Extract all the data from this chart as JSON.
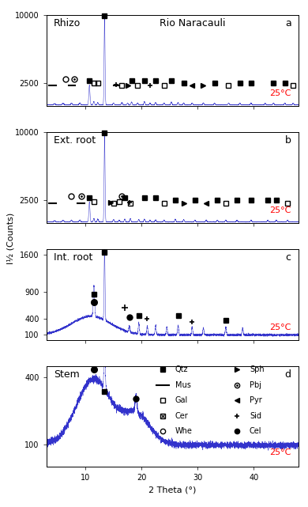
{
  "title": "Rio Naracauli",
  "xlabel": "2 Theta (°)",
  "ylabel": "I½ (Counts)",
  "temp_label": "25°C",
  "panel_labels": [
    "a",
    "b",
    "c",
    "d"
  ],
  "panel_titles": [
    "Rhizo",
    "Ext. root",
    "Int. root",
    "Stem"
  ],
  "xmin": 3,
  "xmax": 48,
  "line_color": "#3333CC",
  "text_color_temp": "#FF0000",
  "panels": [
    {
      "name": "Rhizo",
      "ylim": [
        0,
        10000
      ],
      "yticks": [
        2500,
        10000
      ],
      "ytick_labels": [
        "2500",
        "10000"
      ],
      "baseline": 150,
      "noise": 25
    },
    {
      "name": "Ext. root",
      "ylim": [
        0,
        10000
      ],
      "yticks": [
        2500,
        10000
      ],
      "ytick_labels": [
        "2500",
        "10000"
      ],
      "baseline": 150,
      "noise": 25
    },
    {
      "name": "Int. root",
      "ylim": [
        0,
        1700
      ],
      "yticks": [
        100,
        400,
        900,
        1600
      ],
      "ytick_labels": [
        "100",
        "400",
        "900",
        "1600"
      ],
      "baseline": 100,
      "noise": 15
    },
    {
      "name": "Stem",
      "ylim": [
        0,
        450
      ],
      "yticks": [
        100,
        400
      ],
      "ytick_labels": [
        "100",
        "400"
      ],
      "baseline": 100,
      "noise": 12
    }
  ]
}
